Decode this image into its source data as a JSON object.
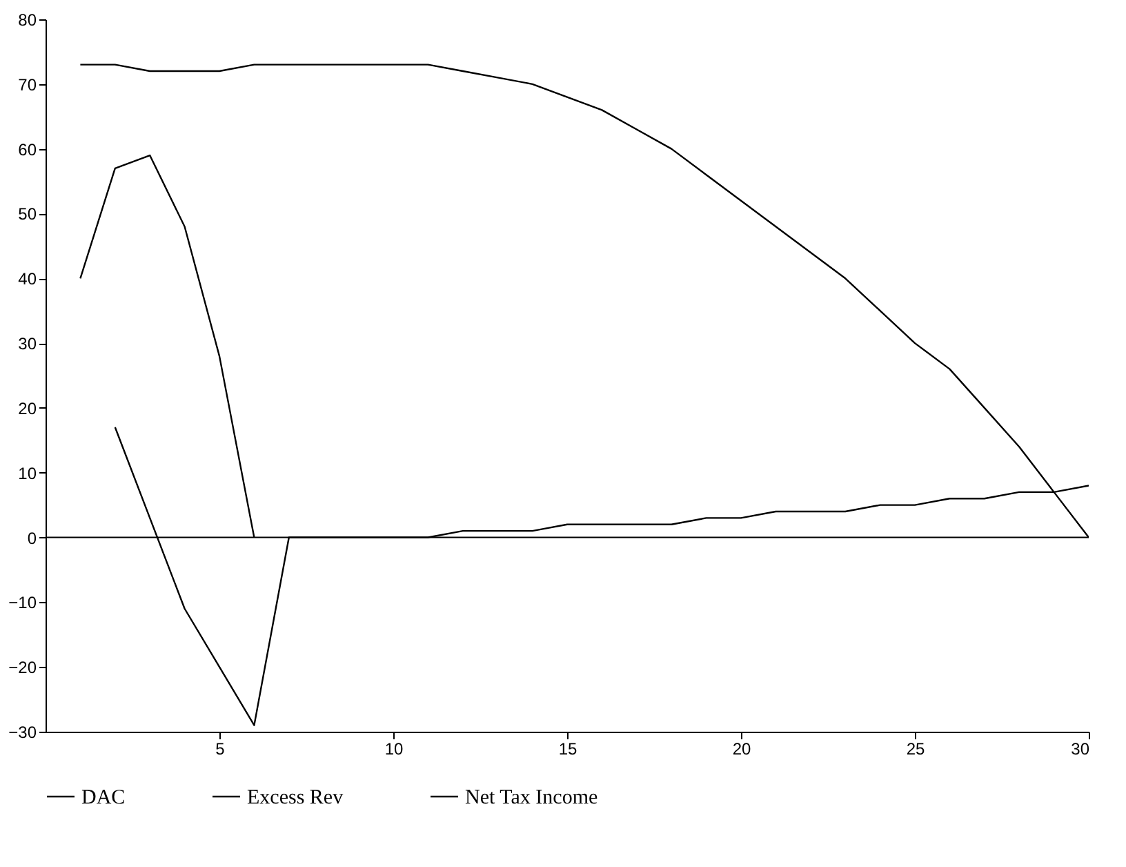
{
  "chart_data": {
    "type": "line",
    "x": [
      1,
      2,
      3,
      4,
      5,
      6,
      7,
      8,
      9,
      10,
      11,
      12,
      13,
      14,
      15,
      16,
      17,
      18,
      19,
      20,
      21,
      22,
      23,
      24,
      25,
      26,
      27,
      28,
      29,
      30
    ],
    "series": [
      {
        "name": "DAC",
        "color": "#000000",
        "values": [
          73,
          73,
          72,
          72,
          72,
          73,
          73,
          73,
          73,
          73,
          73,
          72,
          71,
          70,
          68,
          66,
          63,
          60,
          56,
          52,
          48,
          44,
          40,
          35,
          30,
          26,
          20,
          14,
          7,
          0
        ]
      },
      {
        "name": "Excess Rev",
        "color": "#000000",
        "x": [
          1,
          2,
          3,
          4,
          5,
          6
        ],
        "values": [
          40,
          57,
          59,
          48,
          28,
          0
        ]
      },
      {
        "name": "Net Tax Income",
        "color": "#000000",
        "x": [
          2,
          3,
          4,
          5,
          6,
          7,
          8,
          9,
          10,
          11,
          12,
          13,
          14,
          15,
          16,
          17,
          18,
          19,
          20,
          21,
          22,
          23,
          24,
          25,
          26,
          27,
          28,
          29,
          30
        ],
        "values": [
          17,
          3,
          -11,
          -20,
          -29,
          0,
          0,
          0,
          0,
          0,
          1,
          1,
          1,
          2,
          2,
          2,
          2,
          3,
          3,
          4,
          4,
          4,
          5,
          5,
          6,
          6,
          7,
          7,
          8
        ]
      }
    ],
    "xlim": [
      0,
      30
    ],
    "xticks": [
      5,
      10,
      15,
      20,
      25,
      30
    ],
    "ylim": [
      -30,
      80
    ],
    "yticks": [
      -30,
      -20,
      -10,
      0,
      10,
      20,
      30,
      40,
      50,
      60,
      70,
      80
    ],
    "ref_lines": [
      {
        "axis": "y",
        "value": 0,
        "color": "#000000"
      }
    ],
    "legend": "bottom",
    "line_style": "solid"
  }
}
